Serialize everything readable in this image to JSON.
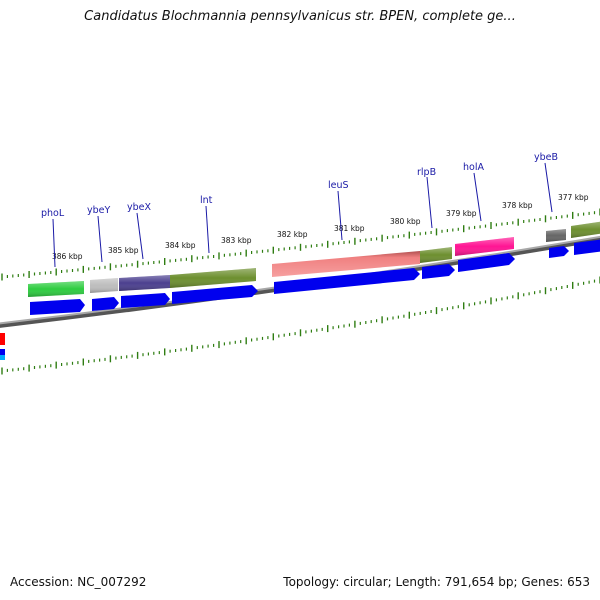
{
  "title": "Candidatus Blochmannia pennsylvanicus str. BPEN, complete ge...",
  "footer": {
    "accession_label": "Accession:",
    "accession": "NC_007292",
    "topology_text": "Topology: circular; Length: 791,654 bp; Genes: 653"
  },
  "colors": {
    "gene_label": "#1a1aa6",
    "backbone": "#7a7a7a",
    "tick": "#2f7d12",
    "orf_arrow": "#0000ee"
  },
  "genes": [
    {
      "name": "phoL",
      "color": "#2ecc40"
    },
    {
      "name": "ybeY",
      "color": "#bdbdbd"
    },
    {
      "name": "ybeX",
      "color": "#4b3f8f"
    },
    {
      "name": "lnt",
      "color": "#6d8f2f"
    },
    {
      "name": "leuS",
      "color": "#f08080"
    },
    {
      "name": "rlpB",
      "color": "#6d8f2f"
    },
    {
      "name": "holA",
      "color": "#ff1493"
    },
    {
      "name": "ybeB",
      "color": "#666666"
    },
    {
      "name": "",
      "color": "#6d8f2f"
    }
  ],
  "tick_labels": [
    "386 kbp",
    "385 kbp",
    "384 kbp",
    "383 kbp",
    "382 kbp",
    "381 kbp",
    "380 kbp",
    "379 kbp",
    "378 kbp",
    "377 kbp"
  ]
}
